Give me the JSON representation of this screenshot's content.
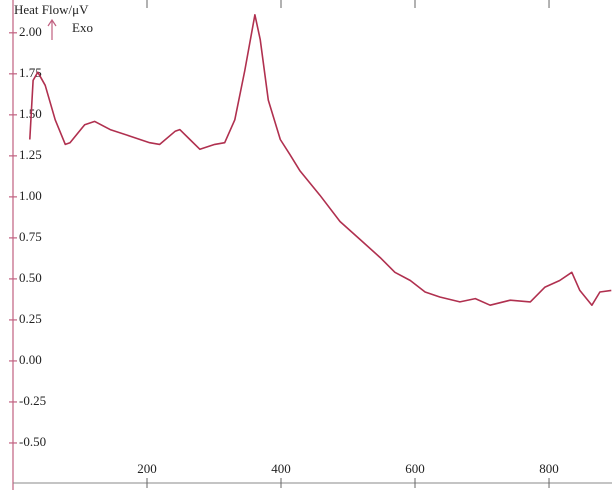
{
  "chart_data": {
    "type": "line",
    "ylabel": "Heat Flow/μV",
    "annotation": "Exo",
    "x": [
      25,
      30,
      37,
      48,
      63,
      78,
      85,
      107,
      122,
      145,
      175,
      204,
      219,
      242,
      249,
      264,
      279,
      301,
      316,
      331,
      346,
      361,
      369,
      381,
      399,
      413,
      428,
      458,
      488,
      518,
      548,
      570,
      593,
      615,
      637,
      667,
      690,
      712,
      742,
      772,
      794,
      816,
      834,
      846,
      864,
      876,
      893
    ],
    "series": [
      {
        "color": "#b0304f",
        "values": [
          1.35,
          1.71,
          1.76,
          1.68,
          1.47,
          1.32,
          1.33,
          1.44,
          1.46,
          1.41,
          1.37,
          1.33,
          1.32,
          1.4,
          1.41,
          1.35,
          1.29,
          1.32,
          1.33,
          1.47,
          1.77,
          2.11,
          1.96,
          1.59,
          1.35,
          1.26,
          1.16,
          1.01,
          0.85,
          0.74,
          0.63,
          0.54,
          0.49,
          0.42,
          0.39,
          0.36,
          0.38,
          0.34,
          0.37,
          0.36,
          0.45,
          0.49,
          0.54,
          0.43,
          0.34,
          0.42,
          0.43
        ]
      }
    ],
    "xlim": [
      0,
      894
    ],
    "xticks": [
      200,
      400,
      600,
      800
    ],
    "ylim": [
      -0.744,
      2.2
    ],
    "yticks": [
      {
        "value": 2,
        "label": "2.00"
      },
      1.75,
      {
        "value": 1.5,
        "label": "1.50"
      },
      1.25,
      {
        "value": 1,
        "label": "1.00"
      },
      0.75,
      {
        "value": 0.5,
        "label": "0.50"
      },
      0.25,
      {
        "value": 0,
        "label": "0.00"
      },
      -0.25,
      {
        "value": -0.5,
        "label": "-0.50"
      }
    ]
  }
}
